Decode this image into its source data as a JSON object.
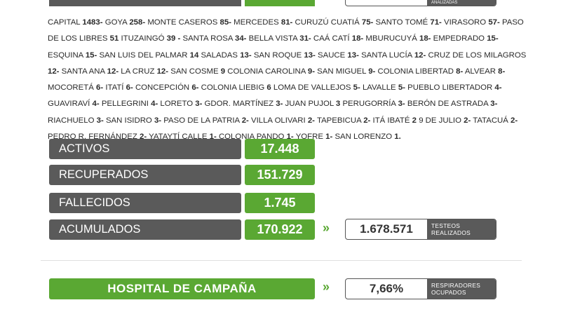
{
  "cities": [
    {
      "name": "CAPITAL",
      "count": "1483-"
    },
    {
      "name": "GOYA",
      "count": "258-"
    },
    {
      "name": "MONTE CASEROS",
      "count": "85-"
    },
    {
      "name": "MERCEDES",
      "count": "81-"
    },
    {
      "name": "CURUZÚ CUATIÁ",
      "count": "75-"
    },
    {
      "name": "SANTO TOMÉ",
      "count": "71-"
    },
    {
      "name": "VIRASORO",
      "count": "57-"
    },
    {
      "name": "PASO DE LOS LIBRES",
      "count": "51"
    },
    {
      "name": "ITUZAINGÓ",
      "count": "39 -"
    },
    {
      "name": "SANTA ROSA",
      "count": "34-"
    },
    {
      "name": "BELLA VISTA",
      "count": "31-"
    },
    {
      "name": "CAÁ CATÍ",
      "count": "18-"
    },
    {
      "name": "MBURUCUYÁ",
      "count": "18-"
    },
    {
      "name": "EMPEDRADO",
      "count": "15-"
    },
    {
      "name": "ESQUINA",
      "count": "15-"
    },
    {
      "name": "SAN LUIS DEL PALMAR",
      "count": "14"
    },
    {
      "name": "SALADAS",
      "count": "13-"
    },
    {
      "name": "SAN ROQUE",
      "count": "13-"
    },
    {
      "name": "SAUCE",
      "count": "13-"
    },
    {
      "name": "SANTA LUCÍA",
      "count": "12-"
    },
    {
      "name": "CRUZ DE LOS MILAGROS",
      "count": "12-"
    },
    {
      "name": "SANTA ANA",
      "count": "12-"
    },
    {
      "name": "LA CRUZ",
      "count": "12-"
    },
    {
      "name": "SAN COSME",
      "count": "9"
    },
    {
      "name": "COLONIA CAROLINA",
      "count": "9-"
    },
    {
      "name": "SAN MIGUEL",
      "count": "9-"
    },
    {
      "name": "COLONIA LIBERTAD",
      "count": "8-"
    },
    {
      "name": "ALVEAR",
      "count": "8-"
    },
    {
      "name": "MOCORETÁ",
      "count": "6-"
    },
    {
      "name": "ITATÍ",
      "count": "6-"
    },
    {
      "name": "CONCEPCIÓN",
      "count": "6-"
    },
    {
      "name": "COLONIA LIEBIG",
      "count": "6"
    },
    {
      "name": "LOMA DE VALLEJOS",
      "count": "5-"
    },
    {
      "name": "LAVALLE",
      "count": "5-"
    },
    {
      "name": "PUEBLO LIBERTADOR",
      "count": "4-"
    },
    {
      "name": "GUAVIRAVÍ",
      "count": "4-"
    },
    {
      "name": "PELLEGRINI",
      "count": "4-"
    },
    {
      "name": "LORETO",
      "count": "3-"
    },
    {
      "name": "GDOR. MARTÍNEZ",
      "count": "3-"
    },
    {
      "name": "JUAN PUJOL",
      "count": "3"
    },
    {
      "name": "PERUGORRÍA",
      "count": "3-"
    },
    {
      "name": "BERÓN DE ASTRADA",
      "count": "3-"
    },
    {
      "name": "RIACHUELO",
      "count": "3-"
    },
    {
      "name": "SAN ISIDRO",
      "count": "3-"
    },
    {
      "name": "PASO DE LA PATRIA",
      "count": "2-"
    },
    {
      "name": "VILLA OLIVARI",
      "count": "2-"
    },
    {
      "name": "TAPEBICUA",
      "count": "2-"
    },
    {
      "name": "ITÁ IBATÉ",
      "count": "2"
    },
    {
      "name": "9 DE JULIO",
      "count": "2-"
    },
    {
      "name": "TATACUÁ",
      "count": "2-"
    },
    {
      "name": "PEDRO R. FERNÁNDEZ",
      "count": "2-"
    },
    {
      "name": "YATAYTÍ CALLE",
      "count": "1-"
    },
    {
      "name": "COLONIA PANDO",
      "count": "1-"
    },
    {
      "name": "YOFRE",
      "count": "1-"
    },
    {
      "name": "SAN LORENZO",
      "count": "1."
    }
  ],
  "stats": {
    "activos": {
      "label": "ACTIVOS",
      "value": "17.448"
    },
    "recuperados": {
      "label": "RECUPERADOS",
      "value": "151.729"
    },
    "fallecidos": {
      "label": "FALLECIDOS",
      "value": "1.745"
    },
    "acumulados": {
      "label": "ACUMULADOS",
      "value": "170.922"
    }
  },
  "tests": {
    "value": "1.678.571",
    "label_line1": "TESTEOS",
    "label_line2": "REALIZADOS"
  },
  "hospital": {
    "label": "HOSPITAL DE CAMPAÑA",
    "value": "7,66%",
    "label_line1": "RESPIRADORES",
    "label_line2": "OCUPADOS"
  },
  "top_partial": {
    "label": "ANALIZADAS"
  },
  "chevron_glyph": "»",
  "colors": {
    "green": "#5aa833",
    "gray": "#5a5a5a"
  }
}
